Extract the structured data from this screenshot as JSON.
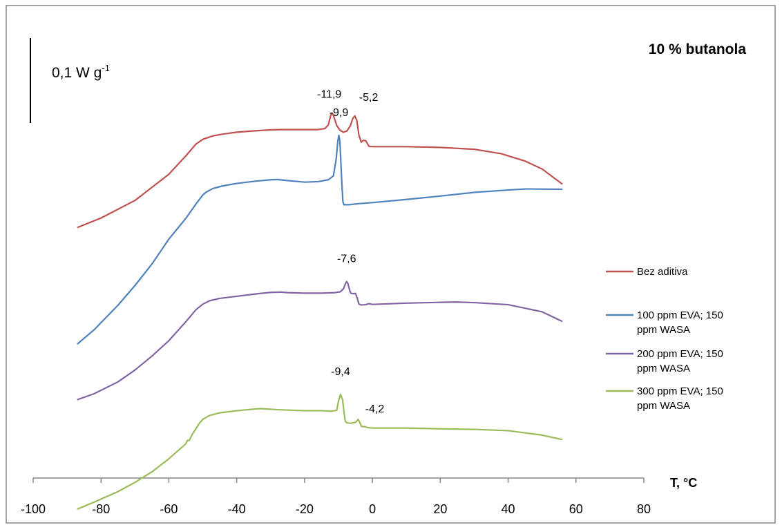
{
  "chart_data": {
    "type": "line",
    "title": "10 % butanola",
    "xlabel": "T, °C",
    "ylabel": "",
    "xlim": [
      -100,
      80
    ],
    "x_ticks": [
      -100,
      -80,
      -60,
      -40,
      -20,
      0,
      20,
      40,
      60,
      80
    ],
    "scale_bar": {
      "value": "0,1 W g",
      "superscript": "-1"
    },
    "legend_position": "right",
    "grid": false,
    "series": [
      {
        "name": "Bez aditiva",
        "color": "#c0504d",
        "points": [
          [
            -87,
            3.93
          ],
          [
            -80,
            3.57
          ],
          [
            -70,
            2.9
          ],
          [
            -60,
            1.9
          ],
          [
            -55,
            1.2
          ],
          [
            -52,
            0.75
          ],
          [
            -50,
            0.57
          ],
          [
            -47,
            0.44
          ],
          [
            -44,
            0.37
          ],
          [
            -40,
            0.3
          ],
          [
            -35,
            0.25
          ],
          [
            -30,
            0.21
          ],
          [
            -27,
            0.2
          ],
          [
            -25,
            0.2
          ],
          [
            -20,
            0.2
          ],
          [
            -16,
            0.2
          ],
          [
            -14,
            0.16
          ],
          [
            -13,
            0.02
          ],
          [
            -12.3,
            -0.34
          ],
          [
            -11.9,
            -0.43
          ],
          [
            -11.5,
            -0.34
          ],
          [
            -10.5,
            0.05
          ],
          [
            -9.5,
            0.23
          ],
          [
            -8.5,
            0.3
          ],
          [
            -7.5,
            0.25
          ],
          [
            -6.5,
            0.05
          ],
          [
            -5.8,
            -0.22
          ],
          [
            -5.2,
            -0.32
          ],
          [
            -4.6,
            -0.15
          ],
          [
            -4,
            0.4
          ],
          [
            -3.3,
            0.68
          ],
          [
            -2.7,
            0.61
          ],
          [
            -2,
            0.62
          ],
          [
            -1.5,
            0.73
          ],
          [
            -1,
            0.84
          ],
          [
            0,
            0.85
          ],
          [
            10,
            0.85
          ],
          [
            20,
            0.88
          ],
          [
            30,
            0.95
          ],
          [
            38,
            1.12
          ],
          [
            45,
            1.4
          ],
          [
            50,
            1.7
          ],
          [
            56,
            2.28
          ]
        ]
      },
      {
        "name": "100 ppm EVA; 150 ppm WASA",
        "color": "#4f81bd",
        "points": [
          [
            -87,
            6.53
          ],
          [
            -82,
            5.98
          ],
          [
            -75,
            5.05
          ],
          [
            -70,
            4.3
          ],
          [
            -65,
            3.48
          ],
          [
            -60,
            2.53
          ],
          [
            -55,
            1.74
          ],
          [
            -52,
            1.19
          ],
          [
            -50,
            0.85
          ],
          [
            -49,
            0.74
          ],
          [
            -47,
            0.6
          ],
          [
            -44,
            0.5
          ],
          [
            -40,
            0.41
          ],
          [
            -35,
            0.33
          ],
          [
            -30,
            0.27
          ],
          [
            -28,
            0.26
          ],
          [
            -25,
            0.3
          ],
          [
            -20,
            0.36
          ],
          [
            -16,
            0.34
          ],
          [
            -13,
            0.27
          ],
          [
            -11.5,
            0.12
          ],
          [
            -10.7,
            -0.5
          ],
          [
            -10.2,
            -1.2
          ],
          [
            -9.9,
            -1.42
          ],
          [
            -9.6,
            -1.2
          ],
          [
            -9.3,
            -0.4
          ],
          [
            -9,
            0.45
          ],
          [
            -8.7,
            1.1
          ],
          [
            -8.4,
            1.22
          ],
          [
            -7,
            1.22
          ],
          [
            -4,
            1.18
          ],
          [
            0,
            1.14
          ],
          [
            10,
            1.02
          ],
          [
            20,
            0.89
          ],
          [
            30,
            0.75
          ],
          [
            40,
            0.66
          ],
          [
            45,
            0.62
          ],
          [
            56,
            0.63
          ]
        ]
      },
      {
        "name": "200 ppm EVA; 150 ppm WASA",
        "color": "#8064a2",
        "points": [
          [
            -87,
            6.28
          ],
          [
            -82,
            6.05
          ],
          [
            -75,
            5.6
          ],
          [
            -70,
            5.15
          ],
          [
            -65,
            4.62
          ],
          [
            -60,
            4.03
          ],
          [
            -55,
            3.31
          ],
          [
            -52,
            2.85
          ],
          [
            -50,
            2.64
          ],
          [
            -48,
            2.51
          ],
          [
            -45,
            2.42
          ],
          [
            -40,
            2.34
          ],
          [
            -35,
            2.26
          ],
          [
            -30,
            2.19
          ],
          [
            -27,
            2.18
          ],
          [
            -25,
            2.2
          ],
          [
            -20,
            2.22
          ],
          [
            -15,
            2.22
          ],
          [
            -11,
            2.2
          ],
          [
            -9.5,
            2.17
          ],
          [
            -8.5,
            2.05
          ],
          [
            -8,
            1.87
          ],
          [
            -7.6,
            1.78
          ],
          [
            -7.2,
            1.86
          ],
          [
            -6.8,
            2.07
          ],
          [
            -6.4,
            2.22
          ],
          [
            -5.8,
            2.24
          ],
          [
            -5,
            2.23
          ],
          [
            -4.5,
            2.4
          ],
          [
            -4,
            2.63
          ],
          [
            -3.4,
            2.67
          ],
          [
            -2,
            2.66
          ],
          [
            -1,
            2.62
          ],
          [
            0,
            2.65
          ],
          [
            10,
            2.6
          ],
          [
            20,
            2.57
          ],
          [
            25,
            2.56
          ],
          [
            30,
            2.58
          ],
          [
            40,
            2.66
          ],
          [
            50,
            2.93
          ],
          [
            56,
            3.3
          ]
        ]
      },
      {
        "name": "300 ppm EVA; 150 ppm WASA",
        "color": "#9bbb59",
        "points": [
          [
            -87,
            8.87
          ],
          [
            -82,
            8.6
          ],
          [
            -75,
            8.2
          ],
          [
            -70,
            7.85
          ],
          [
            -65,
            7.45
          ],
          [
            -60,
            6.95
          ],
          [
            -55,
            6.38
          ],
          [
            -54.5,
            6.25
          ],
          [
            -54,
            6.25
          ],
          [
            -53,
            6.0
          ],
          [
            -51,
            5.6
          ],
          [
            -50,
            5.45
          ],
          [
            -48,
            5.3
          ],
          [
            -45,
            5.2
          ],
          [
            -40,
            5.12
          ],
          [
            -35,
            5.06
          ],
          [
            -33,
            5.04
          ],
          [
            -28,
            5.08
          ],
          [
            -20,
            5.12
          ],
          [
            -15,
            5.12
          ],
          [
            -12,
            5.14
          ],
          [
            -10.5,
            5.1
          ],
          [
            -10,
            4.75
          ],
          [
            -9.4,
            4.5
          ],
          [
            -8.8,
            4.7
          ],
          [
            -8.4,
            5.15
          ],
          [
            -8,
            5.53
          ],
          [
            -7.5,
            5.58
          ],
          [
            -6.5,
            5.6
          ],
          [
            -5,
            5.56
          ],
          [
            -4.5,
            5.5
          ],
          [
            -4.2,
            5.45
          ],
          [
            -3.8,
            5.55
          ],
          [
            -3.2,
            5.72
          ],
          [
            -2,
            5.73
          ],
          [
            -1.5,
            5.76
          ],
          [
            0,
            5.78
          ],
          [
            10,
            5.78
          ],
          [
            20,
            5.81
          ],
          [
            30,
            5.83
          ],
          [
            40,
            5.88
          ],
          [
            50,
            6.05
          ],
          [
            56,
            6.22
          ]
        ]
      }
    ],
    "annotations": [
      {
        "text": "-11,9",
        "x": -11.9,
        "series": 0
      },
      {
        "text": "-5,2",
        "x": -5.2,
        "series": 0
      },
      {
        "text": "-9,9",
        "x": -9.9,
        "series": 1
      },
      {
        "text": "-7,6",
        "x": -7.6,
        "series": 2
      },
      {
        "text": "-9,4",
        "x": -9.4,
        "series": 3
      },
      {
        "text": "-4,2",
        "x": -4.2,
        "series": 3
      }
    ]
  }
}
